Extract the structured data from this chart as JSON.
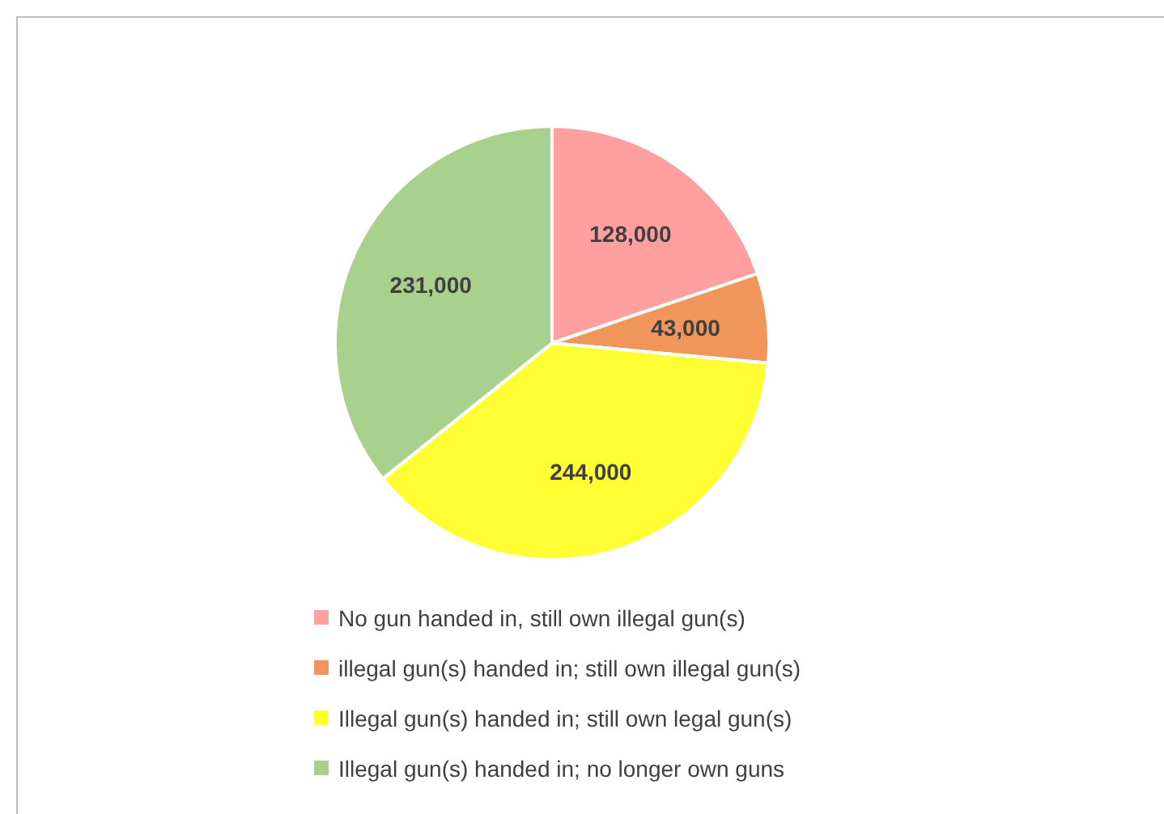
{
  "chart_data": {
    "type": "pie",
    "categories": [
      "No gun handed in, still own illegal gun(s)",
      "illegal gun(s) handed in; still own illegal gun(s)",
      "Illegal gun(s) handed in; still own legal gun(s)",
      "Illegal gun(s) handed in; no longer own guns"
    ],
    "values": [
      128000,
      43000,
      244000,
      231000
    ],
    "colors": [
      "#ff9f9f",
      "#f0965a",
      "#ffff33",
      "#a9d18e"
    ],
    "value_labels": [
      "128,000",
      "43,000",
      "244,000",
      "231,000"
    ],
    "legend": "bottom"
  }
}
